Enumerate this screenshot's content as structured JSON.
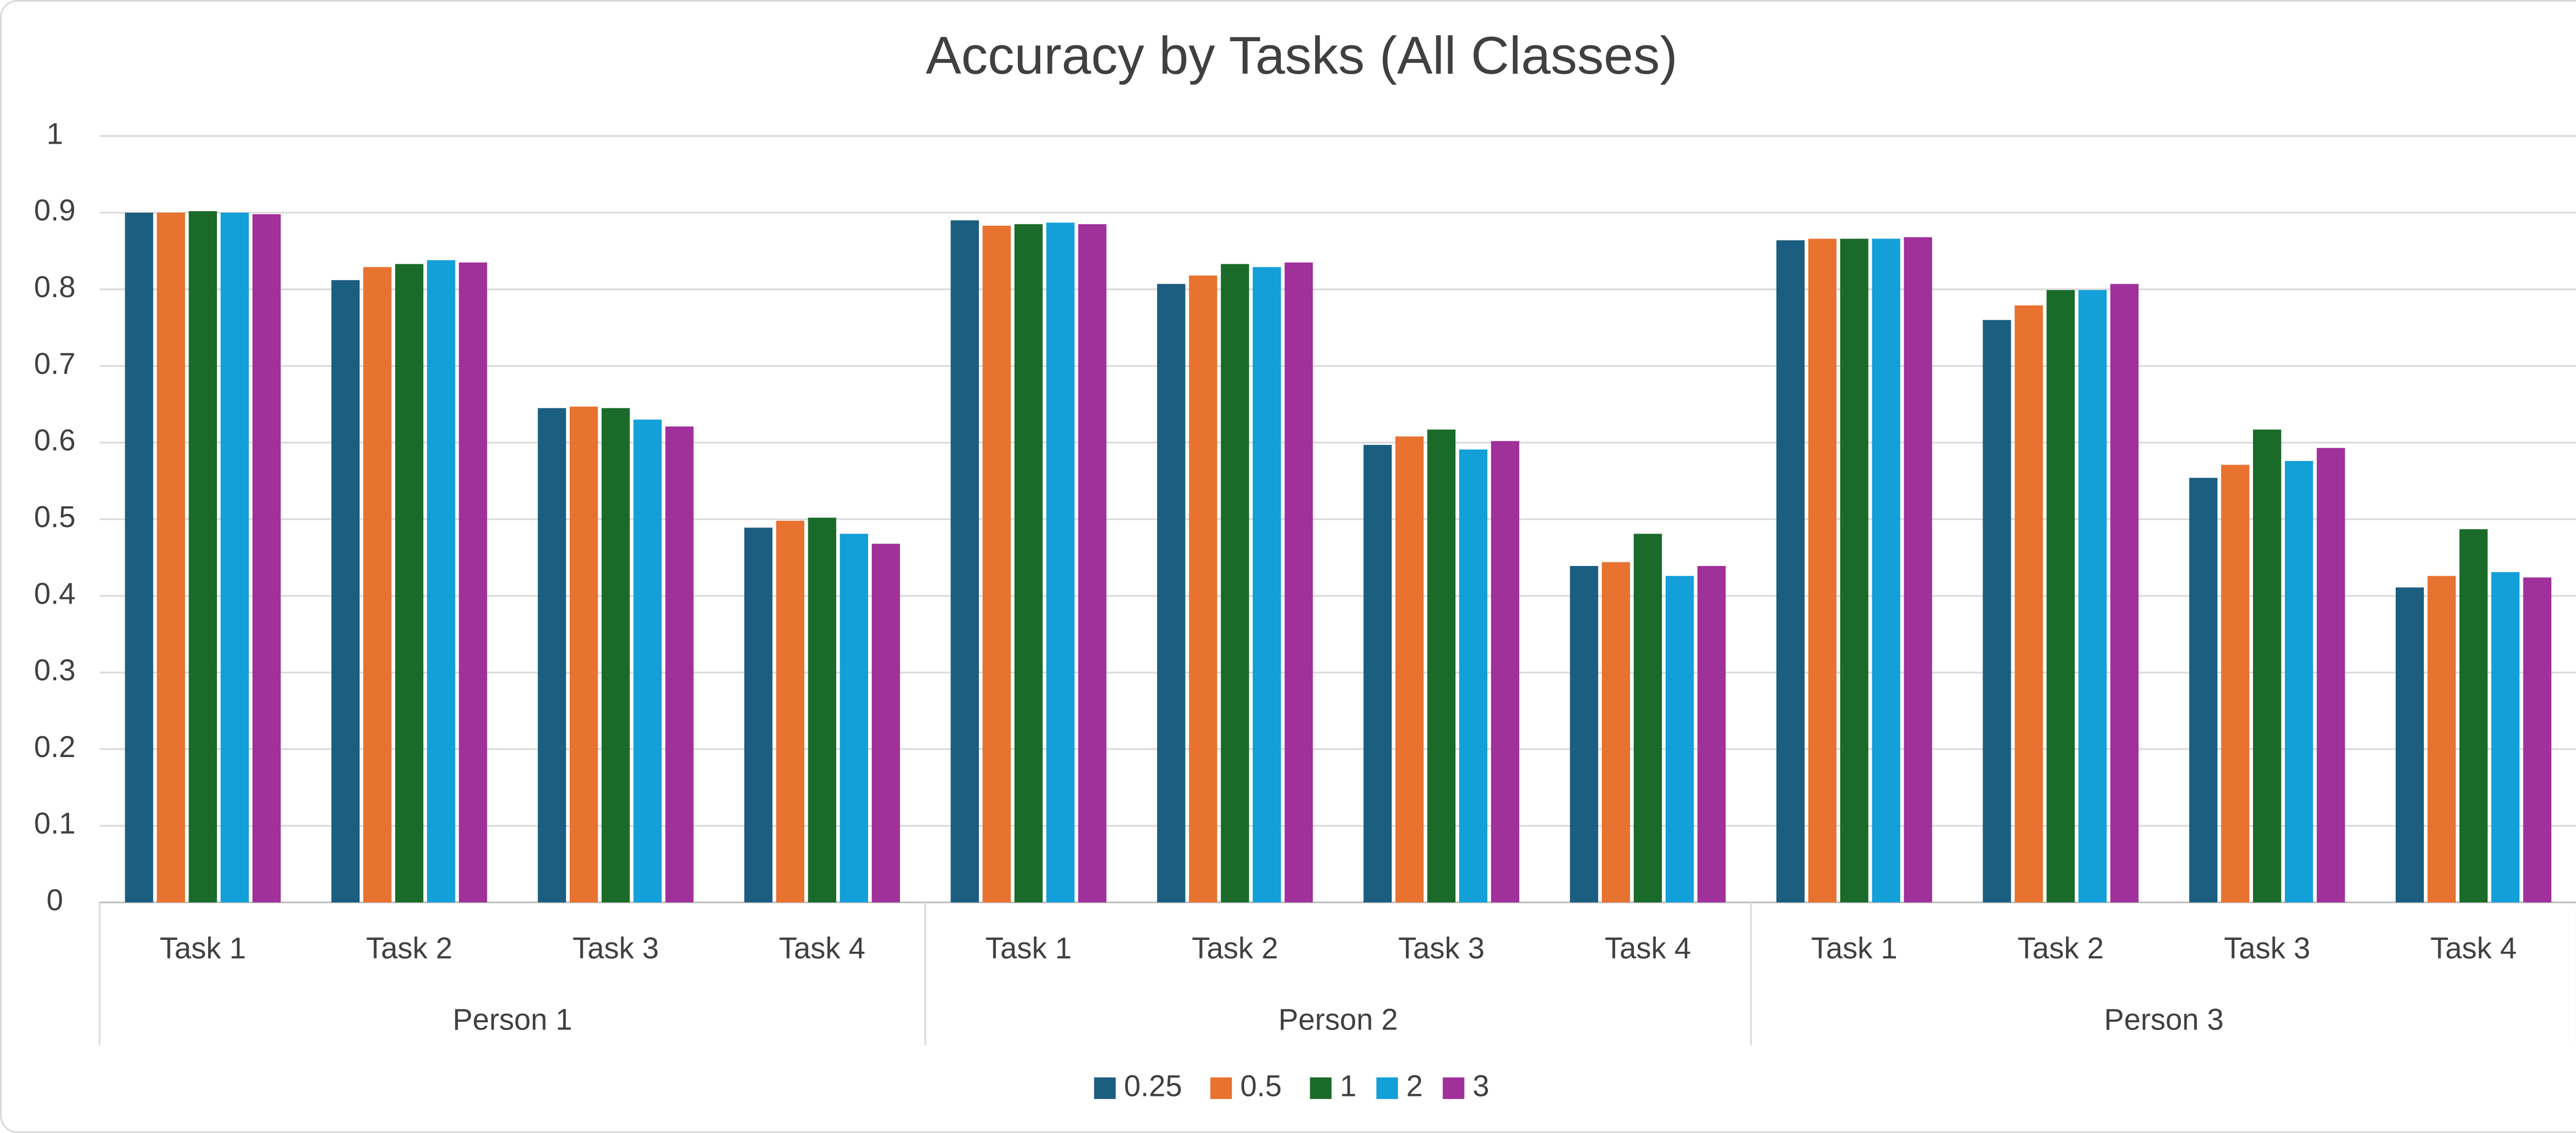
{
  "chart_data": {
    "type": "bar",
    "title": "Accuracy by Tasks (All Classes)",
    "categories": [
      "Task 1",
      "Task 2",
      "Task 3",
      "Task 4",
      "Task 1",
      "Task 2",
      "Task 3",
      "Task 4",
      "Task 1",
      "Task 2",
      "Task 3",
      "Task 4"
    ],
    "groups": [
      "Person 1",
      "Person 2",
      "Person 3"
    ],
    "series": [
      {
        "name": "0.25",
        "color": "#1b5e80",
        "values": [
          0.9,
          0.812,
          0.645,
          0.489,
          0.89,
          0.807,
          0.597,
          0.439,
          0.864,
          0.76,
          0.554,
          0.411
        ]
      },
      {
        "name": "0.5",
        "color": "#e8722f",
        "values": [
          0.9,
          0.829,
          0.647,
          0.498,
          0.883,
          0.818,
          0.608,
          0.444,
          0.866,
          0.779,
          0.571,
          0.426
        ]
      },
      {
        "name": "1",
        "color": "#1a6b2a",
        "values": [
          0.902,
          0.833,
          0.645,
          0.502,
          0.885,
          0.833,
          0.617,
          0.481,
          0.866,
          0.799,
          0.617,
          0.487
        ]
      },
      {
        "name": "2",
        "color": "#139fd8",
        "values": [
          0.9,
          0.838,
          0.63,
          0.481,
          0.887,
          0.829,
          0.591,
          0.426,
          0.866,
          0.799,
          0.576,
          0.431
        ]
      },
      {
        "name": "3",
        "color": "#a0309a",
        "values": [
          0.898,
          0.835,
          0.621,
          0.468,
          0.885,
          0.835,
          0.602,
          0.439,
          0.868,
          0.807,
          0.593,
          0.424
        ]
      }
    ],
    "ylim": [
      0,
      1
    ],
    "yticks": [
      0,
      0.1,
      0.2,
      0.3,
      0.4,
      0.5,
      0.6,
      0.7,
      0.8,
      0.9,
      1
    ],
    "grid": true,
    "legend": "bottom"
  }
}
